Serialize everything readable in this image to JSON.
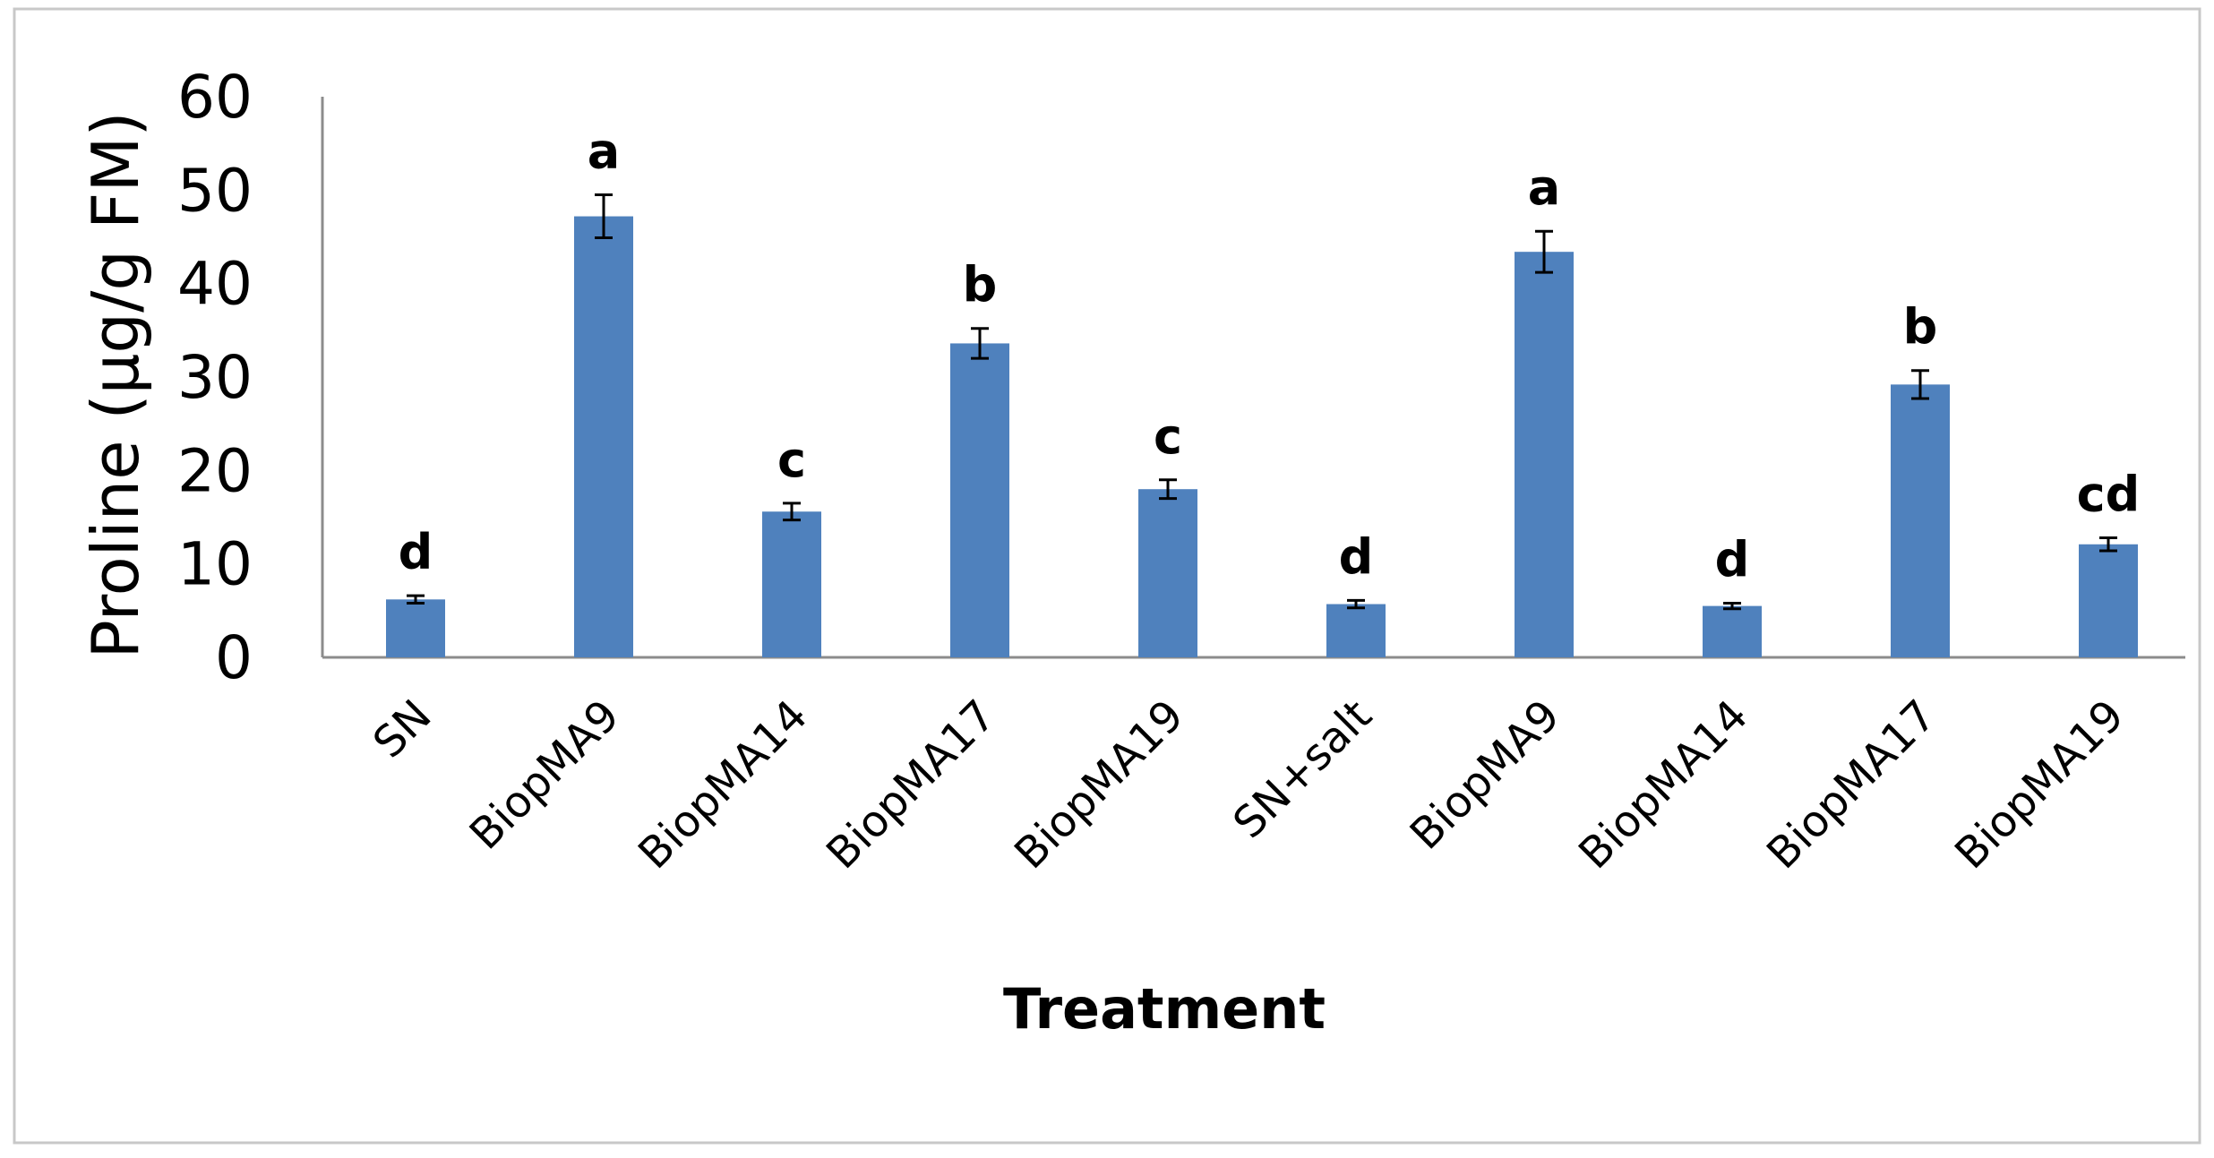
{
  "chart_data": {
    "type": "bar",
    "title": "",
    "xlabel": "Treatment",
    "ylabel": "Proline (µg/g FM)",
    "ylim": [
      0,
      60
    ],
    "yticks": [
      "0",
      "10",
      "20",
      "30",
      "40",
      "50",
      "60"
    ],
    "categories": [
      "SN",
      "BiopMA9",
      "BiopMA14",
      "BiopMA17",
      "BiopMA19",
      "SN+salt",
      "BiopMA9",
      "BiopMA14",
      "BiopMA17",
      "BiopMA19"
    ],
    "values": [
      6.2,
      47.2,
      15.6,
      33.6,
      18.0,
      5.7,
      43.4,
      5.5,
      29.2,
      12.1
    ],
    "errors": [
      0.4,
      2.3,
      0.9,
      1.6,
      1.0,
      0.4,
      2.2,
      0.3,
      1.5,
      0.7
    ],
    "significance": [
      "d",
      "a",
      "c",
      "b",
      "c",
      "d",
      "a",
      "d",
      "b",
      "cd"
    ],
    "bar_color": "#4f81bd",
    "grid": false,
    "legend": "none"
  }
}
